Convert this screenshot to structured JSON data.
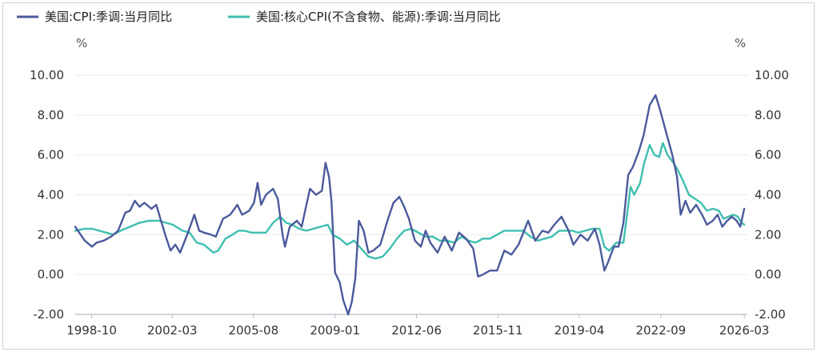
{
  "chart_data": {
    "type": "line",
    "title": "",
    "ylabel_left": "%",
    "ylabel_right": "%",
    "ylim": [
      -2,
      10
    ],
    "yticks": [
      "10.00",
      "8.00",
      "6.00",
      "4.00",
      "2.00",
      "0.00",
      "-2.00"
    ],
    "yticks_right": [
      "10.00",
      "8.00",
      "6.00",
      "4.00",
      "2.00",
      "0.00",
      "-2.00"
    ],
    "ytick_values": [
      10,
      8,
      6,
      4,
      2,
      0,
      -2
    ],
    "xlim": [
      1998.1,
      2026.3
    ],
    "xticks": [
      "1998-10",
      "2002-03",
      "2005-08",
      "2009-01",
      "2012-06",
      "2015-11",
      "2019-04",
      "2022-09",
      "2026-03"
    ],
    "xtick_values": [
      1998.79,
      2002.17,
      2005.58,
      2009.0,
      2012.42,
      2015.83,
      2019.25,
      2022.67,
      2026.17
    ],
    "series": [
      {
        "name": "美国:CPI:季调:当月同比",
        "color": "#4b5a9b",
        "points": [
          [
            1998.1,
            2.4
          ],
          [
            1998.5,
            1.7
          ],
          [
            1998.8,
            1.4
          ],
          [
            1999.0,
            1.6
          ],
          [
            1999.3,
            1.7
          ],
          [
            1999.6,
            1.9
          ],
          [
            1999.9,
            2.2
          ],
          [
            2000.2,
            3.1
          ],
          [
            2000.4,
            3.2
          ],
          [
            2000.6,
            3.7
          ],
          [
            2000.8,
            3.4
          ],
          [
            2001.0,
            3.6
          ],
          [
            2001.3,
            3.3
          ],
          [
            2001.5,
            3.5
          ],
          [
            2001.7,
            2.7
          ],
          [
            2001.9,
            1.9
          ],
          [
            2002.1,
            1.2
          ],
          [
            2002.3,
            1.5
          ],
          [
            2002.5,
            1.1
          ],
          [
            2002.8,
            2.0
          ],
          [
            2003.1,
            3.0
          ],
          [
            2003.3,
            2.2
          ],
          [
            2003.5,
            2.1
          ],
          [
            2003.8,
            2.0
          ],
          [
            2004.0,
            1.9
          ],
          [
            2004.3,
            2.8
          ],
          [
            2004.6,
            3.0
          ],
          [
            2004.9,
            3.5
          ],
          [
            2005.1,
            3.0
          ],
          [
            2005.4,
            3.2
          ],
          [
            2005.6,
            3.6
          ],
          [
            2005.75,
            4.6
          ],
          [
            2005.9,
            3.5
          ],
          [
            2006.1,
            4.0
          ],
          [
            2006.4,
            4.3
          ],
          [
            2006.6,
            3.8
          ],
          [
            2006.8,
            2.0
          ],
          [
            2006.9,
            1.4
          ],
          [
            2007.1,
            2.4
          ],
          [
            2007.4,
            2.7
          ],
          [
            2007.6,
            2.4
          ],
          [
            2007.8,
            3.5
          ],
          [
            2007.95,
            4.3
          ],
          [
            2008.2,
            4.0
          ],
          [
            2008.45,
            4.2
          ],
          [
            2008.6,
            5.6
          ],
          [
            2008.75,
            4.9
          ],
          [
            2008.85,
            3.7
          ],
          [
            2009.0,
            0.1
          ],
          [
            2009.2,
            -0.4
          ],
          [
            2009.35,
            -1.3
          ],
          [
            2009.55,
            -2.0
          ],
          [
            2009.7,
            -1.4
          ],
          [
            2009.85,
            -0.2
          ],
          [
            2010.0,
            2.7
          ],
          [
            2010.2,
            2.2
          ],
          [
            2010.4,
            1.1
          ],
          [
            2010.6,
            1.2
          ],
          [
            2010.9,
            1.5
          ],
          [
            2011.2,
            2.7
          ],
          [
            2011.45,
            3.6
          ],
          [
            2011.7,
            3.9
          ],
          [
            2011.9,
            3.4
          ],
          [
            2012.1,
            2.8
          ],
          [
            2012.35,
            1.7
          ],
          [
            2012.6,
            1.4
          ],
          [
            2012.8,
            2.2
          ],
          [
            2013.0,
            1.6
          ],
          [
            2013.3,
            1.1
          ],
          [
            2013.6,
            1.9
          ],
          [
            2013.9,
            1.2
          ],
          [
            2014.2,
            2.1
          ],
          [
            2014.5,
            1.8
          ],
          [
            2014.8,
            1.3
          ],
          [
            2015.0,
            -0.1
          ],
          [
            2015.2,
            0.0
          ],
          [
            2015.5,
            0.2
          ],
          [
            2015.8,
            0.2
          ],
          [
            2016.1,
            1.2
          ],
          [
            2016.4,
            1.0
          ],
          [
            2016.7,
            1.5
          ],
          [
            2016.9,
            2.1
          ],
          [
            2017.1,
            2.7
          ],
          [
            2017.4,
            1.7
          ],
          [
            2017.7,
            2.2
          ],
          [
            2017.95,
            2.1
          ],
          [
            2018.2,
            2.5
          ],
          [
            2018.5,
            2.9
          ],
          [
            2018.8,
            2.2
          ],
          [
            2019.0,
            1.5
          ],
          [
            2019.3,
            2.0
          ],
          [
            2019.6,
            1.7
          ],
          [
            2019.9,
            2.3
          ],
          [
            2020.1,
            1.5
          ],
          [
            2020.3,
            0.2
          ],
          [
            2020.45,
            0.6
          ],
          [
            2020.7,
            1.4
          ],
          [
            2020.9,
            1.4
          ],
          [
            2021.1,
            2.6
          ],
          [
            2021.3,
            5.0
          ],
          [
            2021.5,
            5.4
          ],
          [
            2021.75,
            6.2
          ],
          [
            2021.95,
            7.0
          ],
          [
            2022.2,
            8.5
          ],
          [
            2022.45,
            9.0
          ],
          [
            2022.65,
            8.2
          ],
          [
            2022.9,
            7.1
          ],
          [
            2023.15,
            6.0
          ],
          [
            2023.35,
            4.9
          ],
          [
            2023.5,
            3.0
          ],
          [
            2023.7,
            3.7
          ],
          [
            2023.9,
            3.1
          ],
          [
            2024.15,
            3.5
          ],
          [
            2024.4,
            3.0
          ],
          [
            2024.6,
            2.5
          ],
          [
            2024.85,
            2.7
          ],
          [
            2025.05,
            3.0
          ],
          [
            2025.25,
            2.4
          ],
          [
            2025.45,
            2.7
          ],
          [
            2025.65,
            2.9
          ],
          [
            2025.85,
            2.7
          ],
          [
            2026.0,
            2.4
          ],
          [
            2026.17,
            3.3
          ]
        ]
      },
      {
        "name": "美国:核心CPI(不含食物、能源):季调:当月同比",
        "color": "#3fbfb0",
        "points": [
          [
            1998.1,
            2.2
          ],
          [
            1998.5,
            2.3
          ],
          [
            1998.8,
            2.3
          ],
          [
            1999.1,
            2.2
          ],
          [
            1999.4,
            2.1
          ],
          [
            1999.7,
            2.0
          ],
          [
            2000.0,
            2.2
          ],
          [
            2000.4,
            2.4
          ],
          [
            2000.8,
            2.6
          ],
          [
            2001.2,
            2.7
          ],
          [
            2001.6,
            2.7
          ],
          [
            2001.9,
            2.6
          ],
          [
            2002.2,
            2.5
          ],
          [
            2002.6,
            2.2
          ],
          [
            2002.9,
            2.1
          ],
          [
            2003.2,
            1.6
          ],
          [
            2003.5,
            1.5
          ],
          [
            2003.9,
            1.1
          ],
          [
            2004.1,
            1.2
          ],
          [
            2004.4,
            1.8
          ],
          [
            2004.7,
            2.0
          ],
          [
            2004.95,
            2.2
          ],
          [
            2005.2,
            2.2
          ],
          [
            2005.5,
            2.1
          ],
          [
            2005.8,
            2.1
          ],
          [
            2006.1,
            2.1
          ],
          [
            2006.4,
            2.6
          ],
          [
            2006.7,
            2.9
          ],
          [
            2006.95,
            2.6
          ],
          [
            2007.2,
            2.5
          ],
          [
            2007.5,
            2.3
          ],
          [
            2007.8,
            2.2
          ],
          [
            2008.1,
            2.3
          ],
          [
            2008.4,
            2.4
          ],
          [
            2008.7,
            2.5
          ],
          [
            2008.9,
            2.0
          ],
          [
            2009.2,
            1.8
          ],
          [
            2009.5,
            1.5
          ],
          [
            2009.8,
            1.7
          ],
          [
            2010.1,
            1.3
          ],
          [
            2010.4,
            0.9
          ],
          [
            2010.7,
            0.8
          ],
          [
            2011.0,
            0.9
          ],
          [
            2011.3,
            1.3
          ],
          [
            2011.6,
            1.8
          ],
          [
            2011.9,
            2.2
          ],
          [
            2012.2,
            2.3
          ],
          [
            2012.5,
            2.1
          ],
          [
            2012.8,
            1.9
          ],
          [
            2013.1,
            1.9
          ],
          [
            2013.4,
            1.7
          ],
          [
            2013.7,
            1.7
          ],
          [
            2014.0,
            1.6
          ],
          [
            2014.3,
            1.9
          ],
          [
            2014.6,
            1.7
          ],
          [
            2014.9,
            1.6
          ],
          [
            2015.2,
            1.8
          ],
          [
            2015.5,
            1.8
          ],
          [
            2015.8,
            2.0
          ],
          [
            2016.1,
            2.2
          ],
          [
            2016.4,
            2.2
          ],
          [
            2016.7,
            2.2
          ],
          [
            2016.9,
            2.2
          ],
          [
            2017.2,
            1.9
          ],
          [
            2017.5,
            1.7
          ],
          [
            2017.8,
            1.8
          ],
          [
            2018.1,
            1.9
          ],
          [
            2018.4,
            2.2
          ],
          [
            2018.7,
            2.2
          ],
          [
            2018.95,
            2.2
          ],
          [
            2019.2,
            2.1
          ],
          [
            2019.5,
            2.2
          ],
          [
            2019.8,
            2.3
          ],
          [
            2020.1,
            2.3
          ],
          [
            2020.3,
            1.4
          ],
          [
            2020.5,
            1.2
          ],
          [
            2020.8,
            1.6
          ],
          [
            2021.1,
            1.6
          ],
          [
            2021.25,
            3.0
          ],
          [
            2021.4,
            4.4
          ],
          [
            2021.55,
            4.0
          ],
          [
            2021.8,
            4.6
          ],
          [
            2021.95,
            5.5
          ],
          [
            2022.2,
            6.5
          ],
          [
            2022.4,
            6.0
          ],
          [
            2022.6,
            5.9
          ],
          [
            2022.75,
            6.6
          ],
          [
            2022.95,
            6.0
          ],
          [
            2023.2,
            5.6
          ],
          [
            2023.4,
            5.2
          ],
          [
            2023.6,
            4.7
          ],
          [
            2023.85,
            4.0
          ],
          [
            2024.1,
            3.8
          ],
          [
            2024.35,
            3.6
          ],
          [
            2024.6,
            3.2
          ],
          [
            2024.85,
            3.3
          ],
          [
            2025.1,
            3.2
          ],
          [
            2025.3,
            2.8
          ],
          [
            2025.5,
            2.9
          ],
          [
            2025.7,
            3.0
          ],
          [
            2025.9,
            2.9
          ],
          [
            2026.05,
            2.6
          ],
          [
            2026.17,
            2.5
          ]
        ]
      }
    ]
  }
}
